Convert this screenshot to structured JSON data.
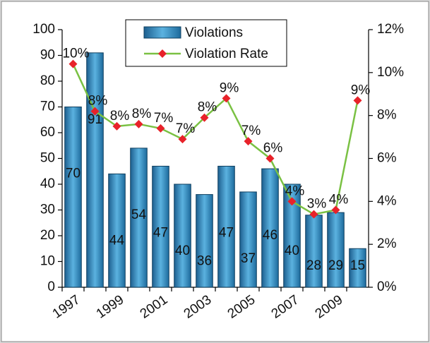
{
  "chart_data": {
    "type": "bar_line",
    "categories": [
      "1997",
      null,
      "1999",
      null,
      "2001",
      null,
      "2003",
      null,
      "2005",
      null,
      "2007",
      null,
      "2009",
      null
    ],
    "series": [
      {
        "name": "Violations",
        "color": "#2f86bd",
        "values": [
          70,
          91,
          44,
          54,
          47,
          40,
          36,
          47,
          37,
          46,
          40,
          28,
          29,
          15
        ]
      },
      {
        "name": "Violation Rate",
        "color": "#7ac143",
        "marker_color": "#e8222a",
        "axis": "y2",
        "values": [
          10.4,
          8.2,
          7.5,
          7.6,
          7.4,
          6.9,
          7.9,
          8.8,
          6.8,
          6.0,
          4.0,
          3.4,
          3.6,
          8.7
        ],
        "value_labels": [
          "10%",
          "8%",
          "8%",
          "8%",
          "7%",
          "7%",
          "8%",
          "9%",
          "7%",
          "6%",
          "4%",
          "3%",
          "4%",
          "9%"
        ]
      }
    ],
    "ylim": [
      0,
      100
    ],
    "yticks": [
      0,
      10,
      20,
      30,
      40,
      50,
      60,
      70,
      80,
      90,
      100
    ],
    "y2lim": [
      0,
      12
    ],
    "y2ticks": [
      {
        "value": 0,
        "label": "0%"
      },
      {
        "value": 2,
        "label": "2%"
      },
      {
        "value": 4,
        "label": "4%"
      },
      {
        "value": 6,
        "label": "6%"
      },
      {
        "value": 8,
        "label": "8%"
      },
      {
        "value": 10,
        "label": "10%"
      },
      {
        "value": 12,
        "label": "12%"
      }
    ],
    "legend": "top"
  }
}
